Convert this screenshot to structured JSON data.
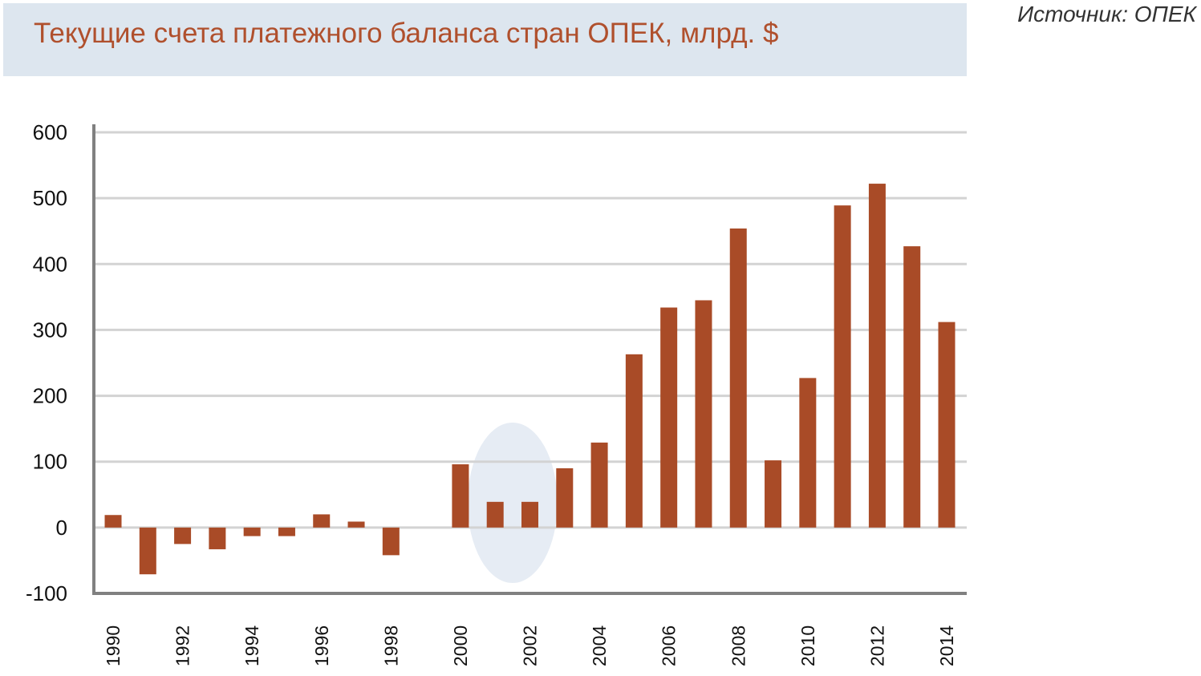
{
  "chart_data": {
    "type": "bar",
    "title": "Текущие счета платежного баланса стран ОПЕК, млрд. $",
    "source": "Источник:  ОПЕК",
    "xlabel": "",
    "ylabel": "",
    "ylim": [
      -100,
      600
    ],
    "yticks": [
      "600",
      "500",
      "400",
      "300",
      "200",
      "100",
      "0",
      "-100"
    ],
    "ytick_values": [
      600,
      500,
      400,
      300,
      200,
      100,
      0,
      -100
    ],
    "categories": [
      "1990",
      "1991",
      "1992",
      "1993",
      "1994",
      "1995",
      "1996",
      "1997",
      "1998",
      "1999",
      "2000",
      "2001",
      "2002",
      "2003",
      "2004",
      "2005",
      "2006",
      "2007",
      "2008",
      "2009",
      "2010",
      "2011",
      "2012",
      "2013",
      "2014"
    ],
    "xtick_labels": [
      "1990",
      "1992",
      "1994",
      "1996",
      "1998",
      "2000",
      "2002",
      "2004",
      "2006",
      "2008",
      "2010",
      "2012",
      "2014"
    ],
    "values": [
      19,
      -71,
      -25,
      -33,
      -13,
      -13,
      20,
      9,
      -42,
      0,
      96,
      39,
      39,
      90,
      129,
      263,
      334,
      345,
      454,
      102,
      227,
      489,
      522,
      427,
      312
    ],
    "grid": true,
    "highlight": [
      "2001",
      "2002"
    ],
    "colors": {
      "bar": "#a94b27",
      "title": "#b0502d",
      "banner": "#dde6ef",
      "grid": "#d3d3d3",
      "axis": "#808080",
      "highlight": "#e6ecf4"
    }
  }
}
